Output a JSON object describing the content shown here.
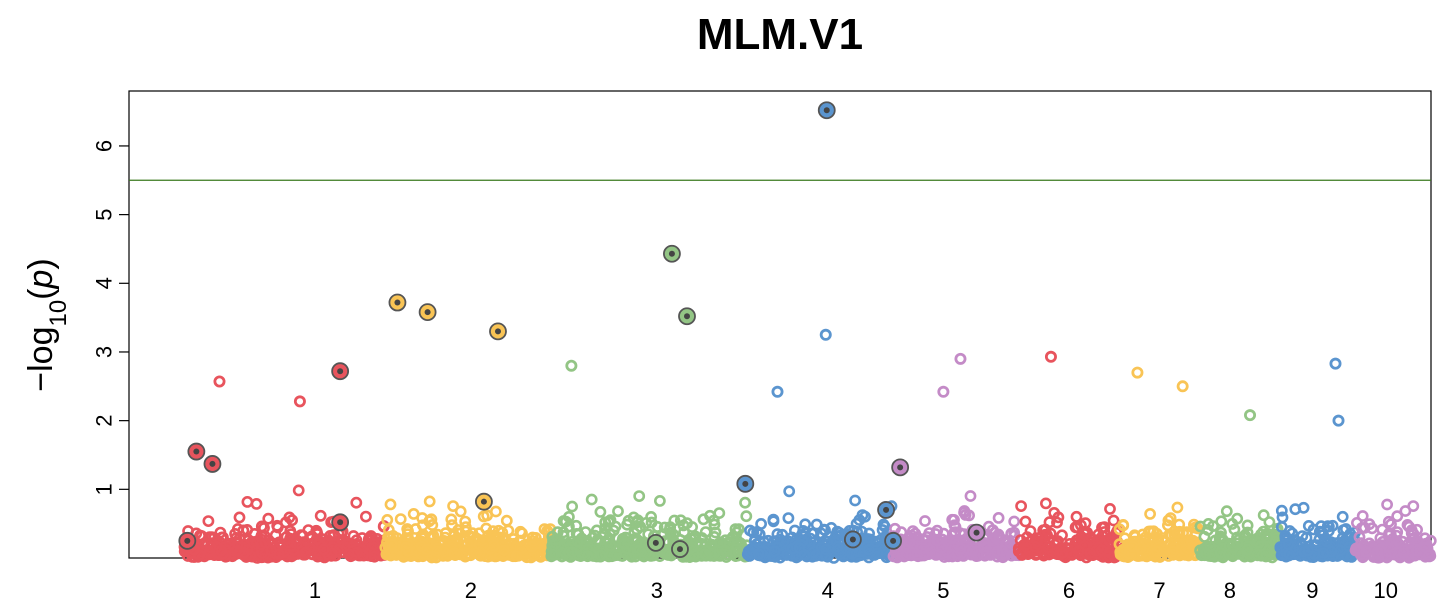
{
  "chart_data": {
    "type": "scatter",
    "subtype": "manhattan",
    "title": "MLM.V1",
    "xlabel": "",
    "ylabel": "-log10(p)",
    "ylim": [
      0,
      6.8
    ],
    "yticks": [
      1,
      2,
      3,
      4,
      5,
      6
    ],
    "threshold": 5.5,
    "threshold_color": "#3a7a1e",
    "grid": false,
    "legend": "none",
    "chromosomes": [
      {
        "name": "1",
        "range": [
          0.0,
          2.0
        ],
        "color": "#e8545d",
        "label_pos": 1.3
      },
      {
        "name": "2",
        "range": [
          2.0,
          3.65
        ],
        "color": "#f9c455",
        "label_pos": 2.85
      },
      {
        "name": "3",
        "range": [
          3.65,
          5.6
        ],
        "color": "#93c585",
        "label_pos": 4.7
      },
      {
        "name": "4",
        "range": [
          5.6,
          7.05
        ],
        "color": "#5b95cf",
        "label_pos": 6.4
      },
      {
        "name": "5",
        "range": [
          7.05,
          8.3
        ],
        "color": "#c48bc7",
        "label_pos": 7.55
      },
      {
        "name": "6",
        "range": [
          8.3,
          9.3
        ],
        "color": "#e8545d",
        "label_pos": 8.8
      },
      {
        "name": "7",
        "range": [
          9.3,
          10.1
        ],
        "color": "#f9c455",
        "label_pos": 9.7
      },
      {
        "name": "8",
        "range": [
          10.1,
          10.9
        ],
        "color": "#93c585",
        "label_pos": 10.4
      },
      {
        "name": "9",
        "range": [
          10.9,
          11.65
        ],
        "color": "#5b95cf",
        "label_pos": 11.22
      },
      {
        "name": "10",
        "range": [
          11.65,
          12.4
        ],
        "color": "#c48bc7",
        "label_pos": 11.95
      }
    ],
    "xlim": [
      -0.55,
      12.4
    ],
    "highlighted_snps": [
      {
        "chr": "1",
        "x": 0.12,
        "y": 1.55
      },
      {
        "chr": "1",
        "x": 0.28,
        "y": 1.37
      },
      {
        "chr": "1",
        "x": 1.55,
        "y": 2.72
      },
      {
        "chr": "1",
        "x": 1.55,
        "y": 0.52
      },
      {
        "chr": "1",
        "x": 0.03,
        "y": 0.25
      },
      {
        "chr": "2",
        "x": 2.12,
        "y": 3.72
      },
      {
        "chr": "2",
        "x": 2.42,
        "y": 3.58
      },
      {
        "chr": "2",
        "x": 3.12,
        "y": 3.3
      },
      {
        "chr": "2",
        "x": 2.98,
        "y": 0.82
      },
      {
        "chr": "3",
        "x": 4.85,
        "y": 4.43
      },
      {
        "chr": "3",
        "x": 5.0,
        "y": 3.52
      },
      {
        "chr": "3",
        "x": 4.69,
        "y": 0.22
      },
      {
        "chr": "3",
        "x": 4.93,
        "y": 0.13
      },
      {
        "chr": "4",
        "x": 5.58,
        "y": 1.08
      },
      {
        "chr": "4",
        "x": 6.39,
        "y": 6.52
      },
      {
        "chr": "4",
        "x": 6.65,
        "y": 0.27
      },
      {
        "chr": "4",
        "x": 6.98,
        "y": 0.7
      },
      {
        "chr": "4",
        "x": 7.05,
        "y": 0.25
      },
      {
        "chr": "5",
        "x": 7.12,
        "y": 1.32
      },
      {
        "chr": "5",
        "x": 7.88,
        "y": 0.37
      }
    ],
    "notable_unhighlighted_snps": [
      {
        "chr": "1",
        "x": 0.35,
        "y": 2.57
      },
      {
        "chr": "1",
        "x": 1.15,
        "y": 2.28
      },
      {
        "chr": "3",
        "x": 3.85,
        "y": 2.8
      },
      {
        "chr": "4",
        "x": 6.38,
        "y": 3.25
      },
      {
        "chr": "4",
        "x": 5.9,
        "y": 2.42
      },
      {
        "chr": "5",
        "x": 7.72,
        "y": 2.9
      },
      {
        "chr": "5",
        "x": 7.55,
        "y": 2.42
      },
      {
        "chr": "6",
        "x": 8.62,
        "y": 2.93
      },
      {
        "chr": "7",
        "x": 9.48,
        "y": 2.7
      },
      {
        "chr": "7",
        "x": 9.93,
        "y": 2.5
      },
      {
        "chr": "8",
        "x": 10.6,
        "y": 2.08
      },
      {
        "chr": "9",
        "x": 11.45,
        "y": 2.83
      },
      {
        "chr": "9",
        "x": 11.48,
        "y": 2.0
      }
    ]
  }
}
